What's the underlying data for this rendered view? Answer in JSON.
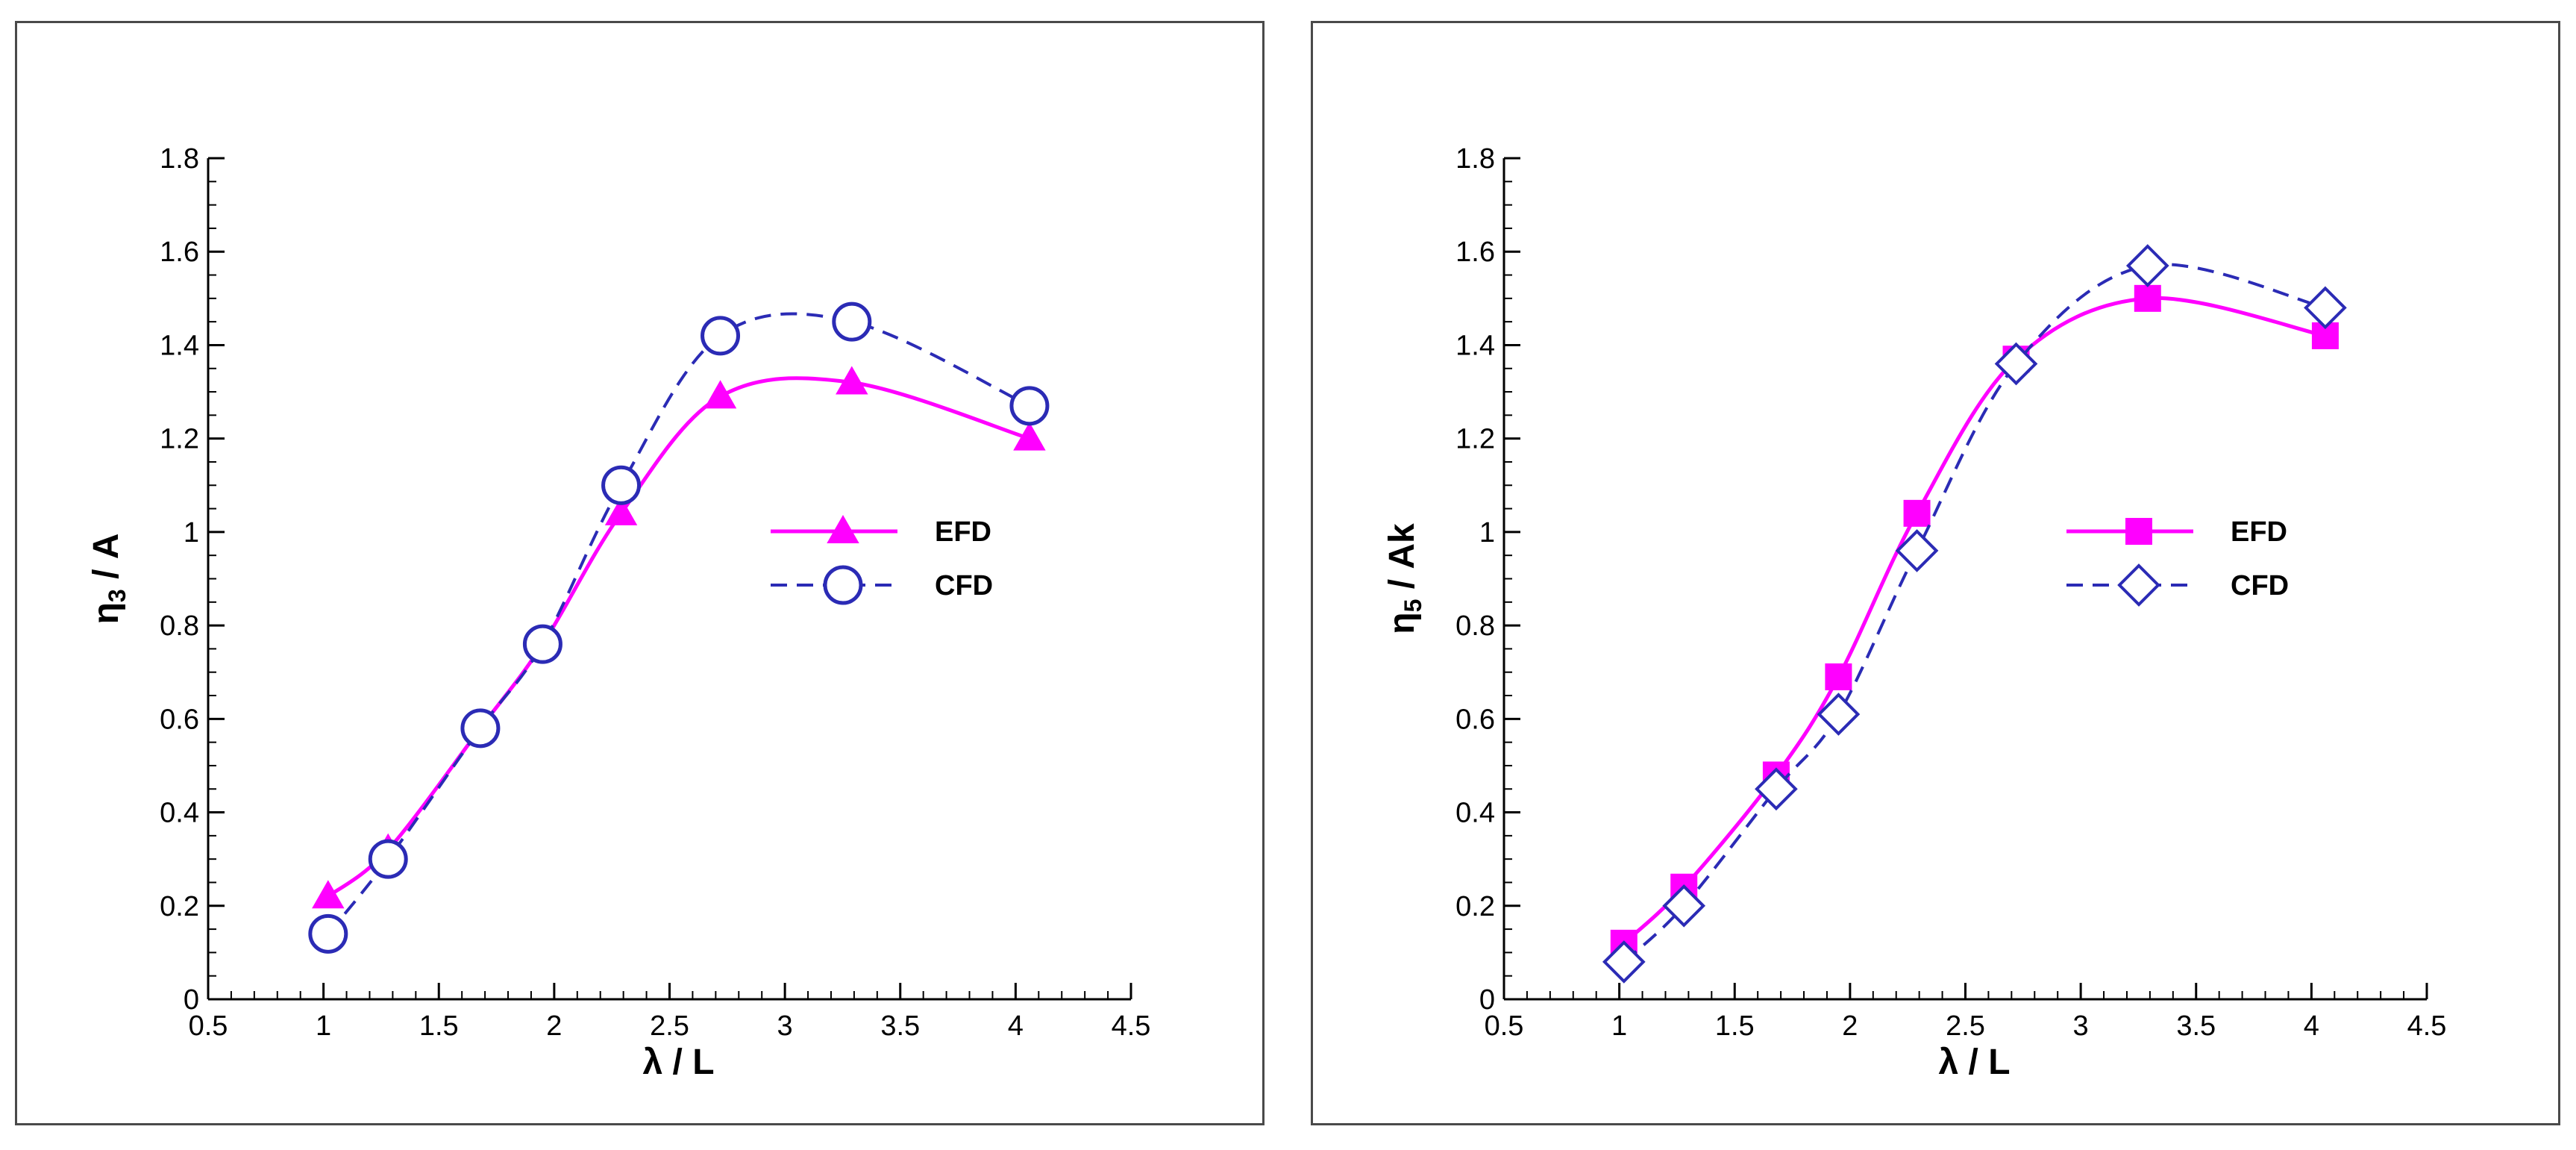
{
  "chart_data": [
    {
      "type": "line",
      "xlabel": "λ / L",
      "ylabel_main": "η",
      "ylabel_sub": "3",
      "ylabel_rest": " / A",
      "xlim": [
        0.5,
        4.5
      ],
      "ylim": [
        0,
        1.8
      ],
      "xticks": [
        "0.5",
        "1",
        "1.5",
        "2",
        "2.5",
        "3",
        "3.5",
        "4",
        "4.5"
      ],
      "yticks": [
        "0",
        "0.2",
        "0.4",
        "0.6",
        "0.8",
        "1",
        "1.2",
        "1.4",
        "1.6",
        "1.8"
      ],
      "legend_position": "right-middle",
      "series": [
        {
          "name": "EFD",
          "marker": "triangle",
          "style": "solid",
          "color": "#ff00ff",
          "x": [
            1.02,
            1.28,
            1.68,
            1.95,
            2.29,
            2.72,
            3.29,
            4.06
          ],
          "y": [
            0.22,
            0.32,
            0.58,
            0.76,
            1.04,
            1.29,
            1.32,
            1.2
          ]
        },
        {
          "name": "CFD",
          "marker": "circle",
          "style": "dashed",
          "color": "#2b2bb5",
          "x": [
            1.02,
            1.28,
            1.68,
            1.95,
            2.29,
            2.72,
            3.29,
            4.06
          ],
          "y": [
            0.14,
            0.3,
            0.58,
            0.76,
            1.1,
            1.42,
            1.45,
            1.27
          ]
        }
      ]
    },
    {
      "type": "line",
      "xlabel": "λ / L",
      "ylabel_main": "η",
      "ylabel_sub": "5",
      "ylabel_rest": " / Ak",
      "xlim": [
        0.5,
        4.5
      ],
      "ylim": [
        0,
        1.8
      ],
      "xticks": [
        "0.5",
        "1",
        "1.5",
        "2",
        "2.5",
        "3",
        "3.5",
        "4",
        "4.5"
      ],
      "yticks": [
        "0",
        "0.2",
        "0.4",
        "0.6",
        "0.8",
        "1",
        "1.2",
        "1.4",
        "1.6",
        "1.8"
      ],
      "legend_position": "right-middle",
      "series": [
        {
          "name": "EFD",
          "marker": "square",
          "style": "solid",
          "color": "#ff00ff",
          "x": [
            1.02,
            1.28,
            1.68,
            1.95,
            2.29,
            2.72,
            3.29,
            4.06
          ],
          "y": [
            0.12,
            0.24,
            0.48,
            0.69,
            1.04,
            1.37,
            1.5,
            1.42
          ]
        },
        {
          "name": "CFD",
          "marker": "diamond",
          "style": "dashed",
          "color": "#2b2bb5",
          "x": [
            1.02,
            1.28,
            1.68,
            1.95,
            2.29,
            2.72,
            3.29,
            4.06
          ],
          "y": [
            0.08,
            0.2,
            0.45,
            0.61,
            0.96,
            1.36,
            1.57,
            1.48
          ]
        }
      ]
    }
  ]
}
